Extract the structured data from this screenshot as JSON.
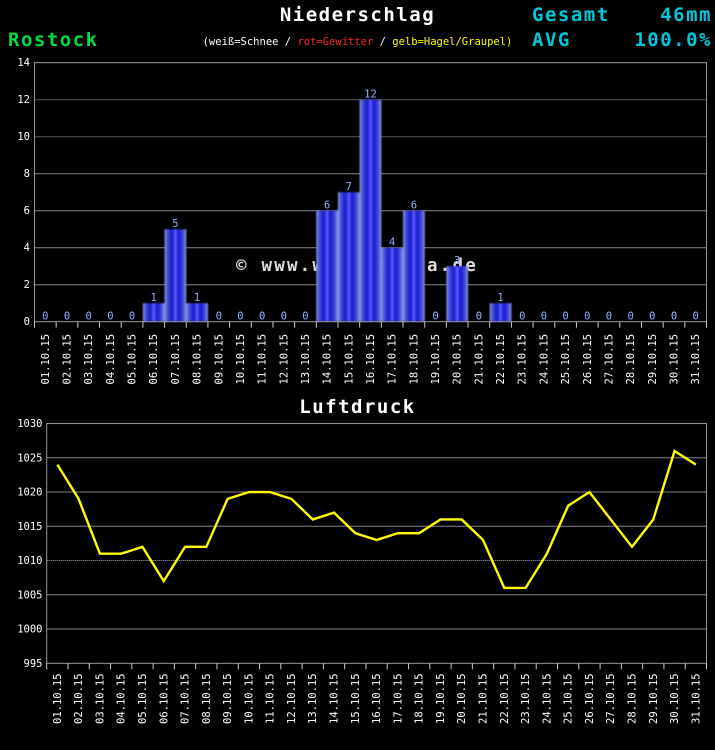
{
  "page": {
    "background": "#000000"
  },
  "header": {
    "title": "Niederschlag",
    "station": "Rostock",
    "station_color": "#00df40",
    "accent_color": "#00c8dc",
    "stats": [
      {
        "label": "Gesamt",
        "value": "46mm"
      },
      {
        "label": "AVG",
        "value": "100.0%"
      }
    ],
    "legend_parts": [
      {
        "text": "(weiß=Schnee / ",
        "color": "#ffffff"
      },
      {
        "text": "rot=Gewitter",
        "color": "#ff2626"
      },
      {
        "text": " / ",
        "color": "#ffffff"
      },
      {
        "text": "gelb=Hagel/Graupel)",
        "color": "#ffff00"
      }
    ]
  },
  "watermark": "© www.wetterdata.de",
  "chart_data": [
    {
      "type": "bar",
      "title": "Niederschlag",
      "ylabel": "",
      "ylim": [
        0,
        14
      ],
      "yticks": [
        0,
        2,
        4,
        6,
        8,
        10,
        12,
        14
      ],
      "grid": true,
      "categories": [
        "01.10.15",
        "02.10.15",
        "03.10.15",
        "04.10.15",
        "05.10.15",
        "06.10.15",
        "07.10.15",
        "08.10.15",
        "09.10.15",
        "10.10.15",
        "11.10.15",
        "12.10.15",
        "13.10.15",
        "14.10.15",
        "15.10.15",
        "16.10.15",
        "17.10.15",
        "18.10.15",
        "19.10.15",
        "20.10.15",
        "21.10.15",
        "22.10.15",
        "23.10.15",
        "24.10.15",
        "25.10.15",
        "26.10.15",
        "27.10.15",
        "28.10.15",
        "29.10.15",
        "30.10.15",
        "31.10.15"
      ],
      "values": [
        0,
        0,
        0,
        0,
        0,
        1,
        5,
        1,
        0,
        0,
        0,
        0,
        0,
        6,
        7,
        12,
        4,
        6,
        0,
        3,
        0,
        1,
        0,
        0,
        0,
        0,
        0,
        0,
        0,
        0,
        0
      ],
      "bar_color": "#2020cc",
      "label_color": "#8fb2ff"
    },
    {
      "type": "line",
      "title": "Luftdruck",
      "ylabel": "",
      "ylim": [
        995,
        1030
      ],
      "yticks": [
        995,
        1000,
        1005,
        1010,
        1015,
        1020,
        1025,
        1030
      ],
      "grid": true,
      "categories": [
        "01.10.15",
        "02.10.15",
        "03.10.15",
        "04.10.15",
        "05.10.15",
        "06.10.15",
        "07.10.15",
        "08.10.15",
        "09.10.15",
        "10.10.15",
        "11.10.15",
        "12.10.15",
        "13.10.15",
        "14.10.15",
        "15.10.15",
        "16.10.15",
        "17.10.15",
        "18.10.15",
        "19.10.15",
        "20.10.15",
        "21.10.15",
        "22.10.15",
        "23.10.15",
        "24.10.15",
        "25.10.15",
        "26.10.15",
        "27.10.15",
        "28.10.15",
        "29.10.15",
        "30.10.15",
        "31.10.15"
      ],
      "values": [
        1024,
        1019,
        1011,
        1011,
        1012,
        1007,
        1012,
        1012,
        1019,
        1020,
        1020,
        1019,
        1016,
        1017,
        1014,
        1013,
        1014,
        1014,
        1016,
        1016,
        1013,
        1006,
        1006,
        1011,
        1018,
        1020,
        1016,
        1012,
        1016,
        1026,
        1024
      ],
      "line_color": "#ffff00"
    }
  ]
}
